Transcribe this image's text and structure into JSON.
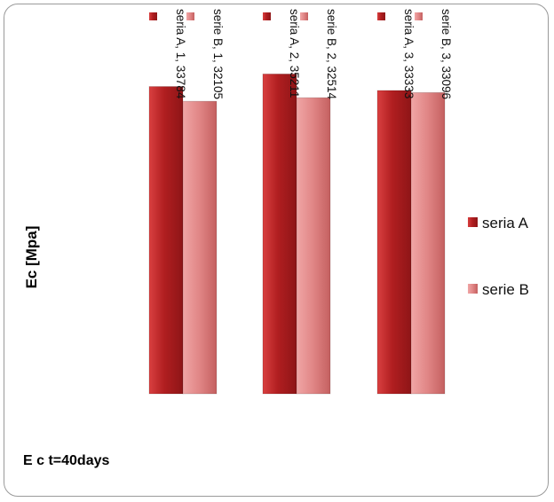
{
  "chart_data": {
    "type": "bar",
    "xlabel": "E c t=40days",
    "ylabel": "Ec [Mpa]",
    "categories": [
      "1",
      "2",
      "3"
    ],
    "series": [
      {
        "name": "seria A",
        "values": [
          33784,
          35211,
          33333
        ],
        "color": "#c0282a",
        "labels": [
          "seria A, 1, 33784",
          "seria A, 2, 35211",
          "seria A, 3, 33333"
        ]
      },
      {
        "name": "serie B",
        "values": [
          32105,
          32514,
          33096
        ],
        "color": "#e08585",
        "labels": [
          "serie B, 1, 32105",
          "serie B, 2, 32514",
          "serie B, 3, 33096"
        ]
      }
    ],
    "legend_position": "right",
    "grid": false,
    "axes_visible": false
  }
}
